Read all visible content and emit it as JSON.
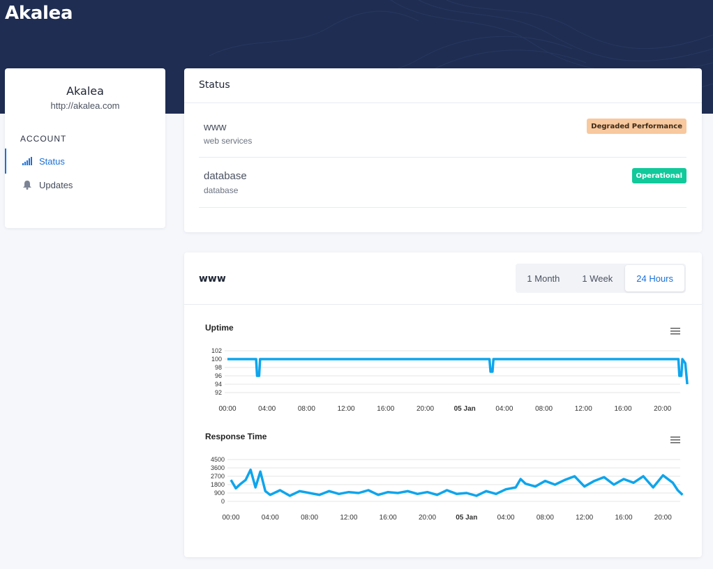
{
  "header": {
    "brand": "Akalea"
  },
  "sidebar": {
    "name": "Akalea",
    "url": "http://akalea.com",
    "section": "ACCOUNT",
    "items": [
      {
        "label": "Status",
        "icon": "signal-bars-icon",
        "active": true
      },
      {
        "label": "Updates",
        "icon": "bell-icon",
        "active": false
      }
    ]
  },
  "status": {
    "title": "Status",
    "services": [
      {
        "name": "www",
        "description": "web services",
        "status": "Degraded Performance",
        "status_color": "#f8c89e",
        "status_text_color": "#3a2a18"
      },
      {
        "name": "database",
        "description": "database",
        "status": "Operational",
        "status_color": "#12c99b",
        "status_text_color": "#ffffff"
      }
    ]
  },
  "metrics": {
    "title": "www",
    "ranges": [
      "1 Month",
      "1 Week",
      "24 Hours"
    ],
    "selected_range": "24 Hours",
    "accent_color": "#1b70d8",
    "series_color": "#0ea5ec"
  },
  "chart_data": [
    {
      "type": "line",
      "title": "Uptime",
      "x_ticks": [
        "00:00",
        "04:00",
        "08:00",
        "12:00",
        "16:00",
        "20:00",
        "05 Jan",
        "04:00",
        "08:00",
        "12:00",
        "16:00",
        "20:00"
      ],
      "y_ticks": [
        "102",
        "100",
        "98",
        "96",
        "94",
        "92"
      ],
      "ylim": [
        92,
        102
      ],
      "xlim_hours": [
        0,
        46.5
      ],
      "grid": true,
      "series": [
        {
          "values": [
            [
              0,
              100
            ],
            [
              2.9,
              100
            ],
            [
              3.0,
              96
            ],
            [
              3.2,
              96
            ],
            [
              3.3,
              100
            ],
            [
              26.5,
              100
            ],
            [
              26.6,
              97
            ],
            [
              26.8,
              97
            ],
            [
              26.9,
              100
            ],
            [
              45.6,
              100
            ],
            [
              45.7,
              96
            ],
            [
              45.9,
              96
            ],
            [
              46.0,
              100
            ],
            [
              46.3,
              99
            ],
            [
              46.5,
              94
            ]
          ]
        }
      ]
    },
    {
      "type": "line",
      "title": "Response Time",
      "x_ticks": [
        "00:00",
        "04:00",
        "08:00",
        "12:00",
        "16:00",
        "20:00",
        "05 Jan",
        "04:00",
        "08:00",
        "12:00",
        "16:00",
        "20:00"
      ],
      "y_ticks": [
        "4500",
        "3600",
        "2700",
        "1800",
        "900",
        "0"
      ],
      "ylim": [
        0,
        4500
      ],
      "xlim_hours": [
        0,
        46
      ],
      "grid": true,
      "series": [
        {
          "values": [
            [
              0,
              2300
            ],
            [
              0.5,
              1400
            ],
            [
              1,
              1900
            ],
            [
              1.5,
              2300
            ],
            [
              2,
              3400
            ],
            [
              2.5,
              1500
            ],
            [
              3,
              3200
            ],
            [
              3.5,
              1100
            ],
            [
              4,
              700
            ],
            [
              5,
              1200
            ],
            [
              6,
              600
            ],
            [
              7,
              1100
            ],
            [
              8,
              900
            ],
            [
              9,
              700
            ],
            [
              10,
              1100
            ],
            [
              11,
              800
            ],
            [
              12,
              1000
            ],
            [
              13,
              900
            ],
            [
              14,
              1200
            ],
            [
              15,
              700
            ],
            [
              16,
              1000
            ],
            [
              17,
              900
            ],
            [
              18,
              1100
            ],
            [
              19,
              800
            ],
            [
              20,
              1000
            ],
            [
              21,
              700
            ],
            [
              22,
              1200
            ],
            [
              23,
              800
            ],
            [
              24,
              900
            ],
            [
              25,
              600
            ],
            [
              26,
              1100
            ],
            [
              27,
              800
            ],
            [
              28,
              1300
            ],
            [
              29,
              1500
            ],
            [
              29.5,
              2400
            ],
            [
              30,
              1900
            ],
            [
              31,
              1600
            ],
            [
              32,
              2200
            ],
            [
              33,
              1800
            ],
            [
              34,
              2300
            ],
            [
              35,
              2700
            ],
            [
              36,
              1600
            ],
            [
              37,
              2200
            ],
            [
              38,
              2600
            ],
            [
              39,
              1800
            ],
            [
              40,
              2400
            ],
            [
              41,
              2000
            ],
            [
              42,
              2700
            ],
            [
              43,
              1500
            ],
            [
              44,
              2800
            ],
            [
              45,
              2000
            ],
            [
              45.5,
              1200
            ],
            [
              46,
              700
            ]
          ]
        }
      ]
    }
  ]
}
